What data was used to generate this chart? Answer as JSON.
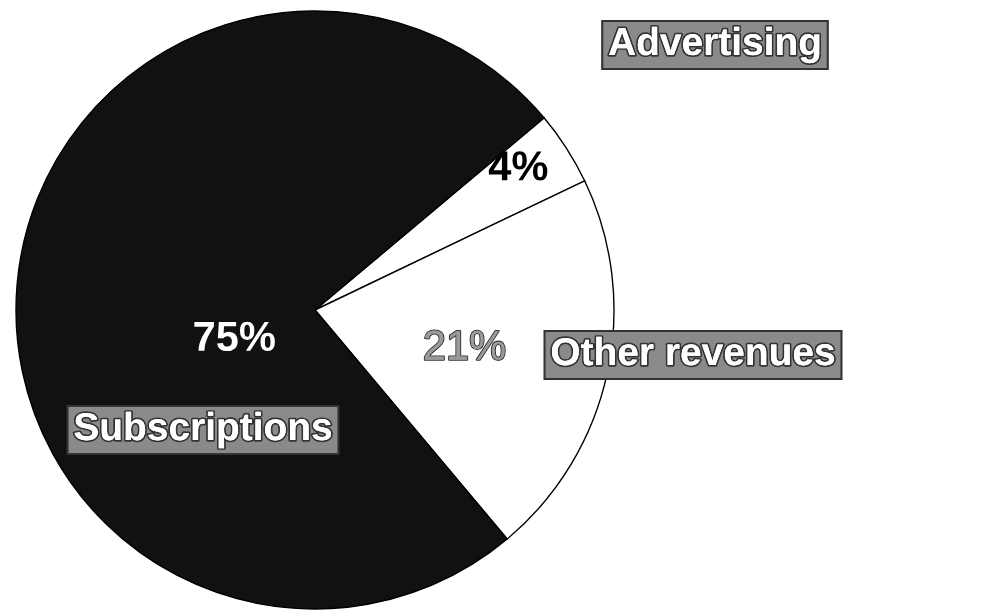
{
  "chart_data": {
    "type": "pie",
    "categories": [
      "Advertising",
      "Other revenues",
      "Subscriptions"
    ],
    "values": [
      4,
      21,
      75
    ],
    "colors": [
      "#ffffff",
      "#ffffff",
      "#111111"
    ],
    "value_labels": [
      "4%",
      "21%",
      "75%"
    ]
  }
}
